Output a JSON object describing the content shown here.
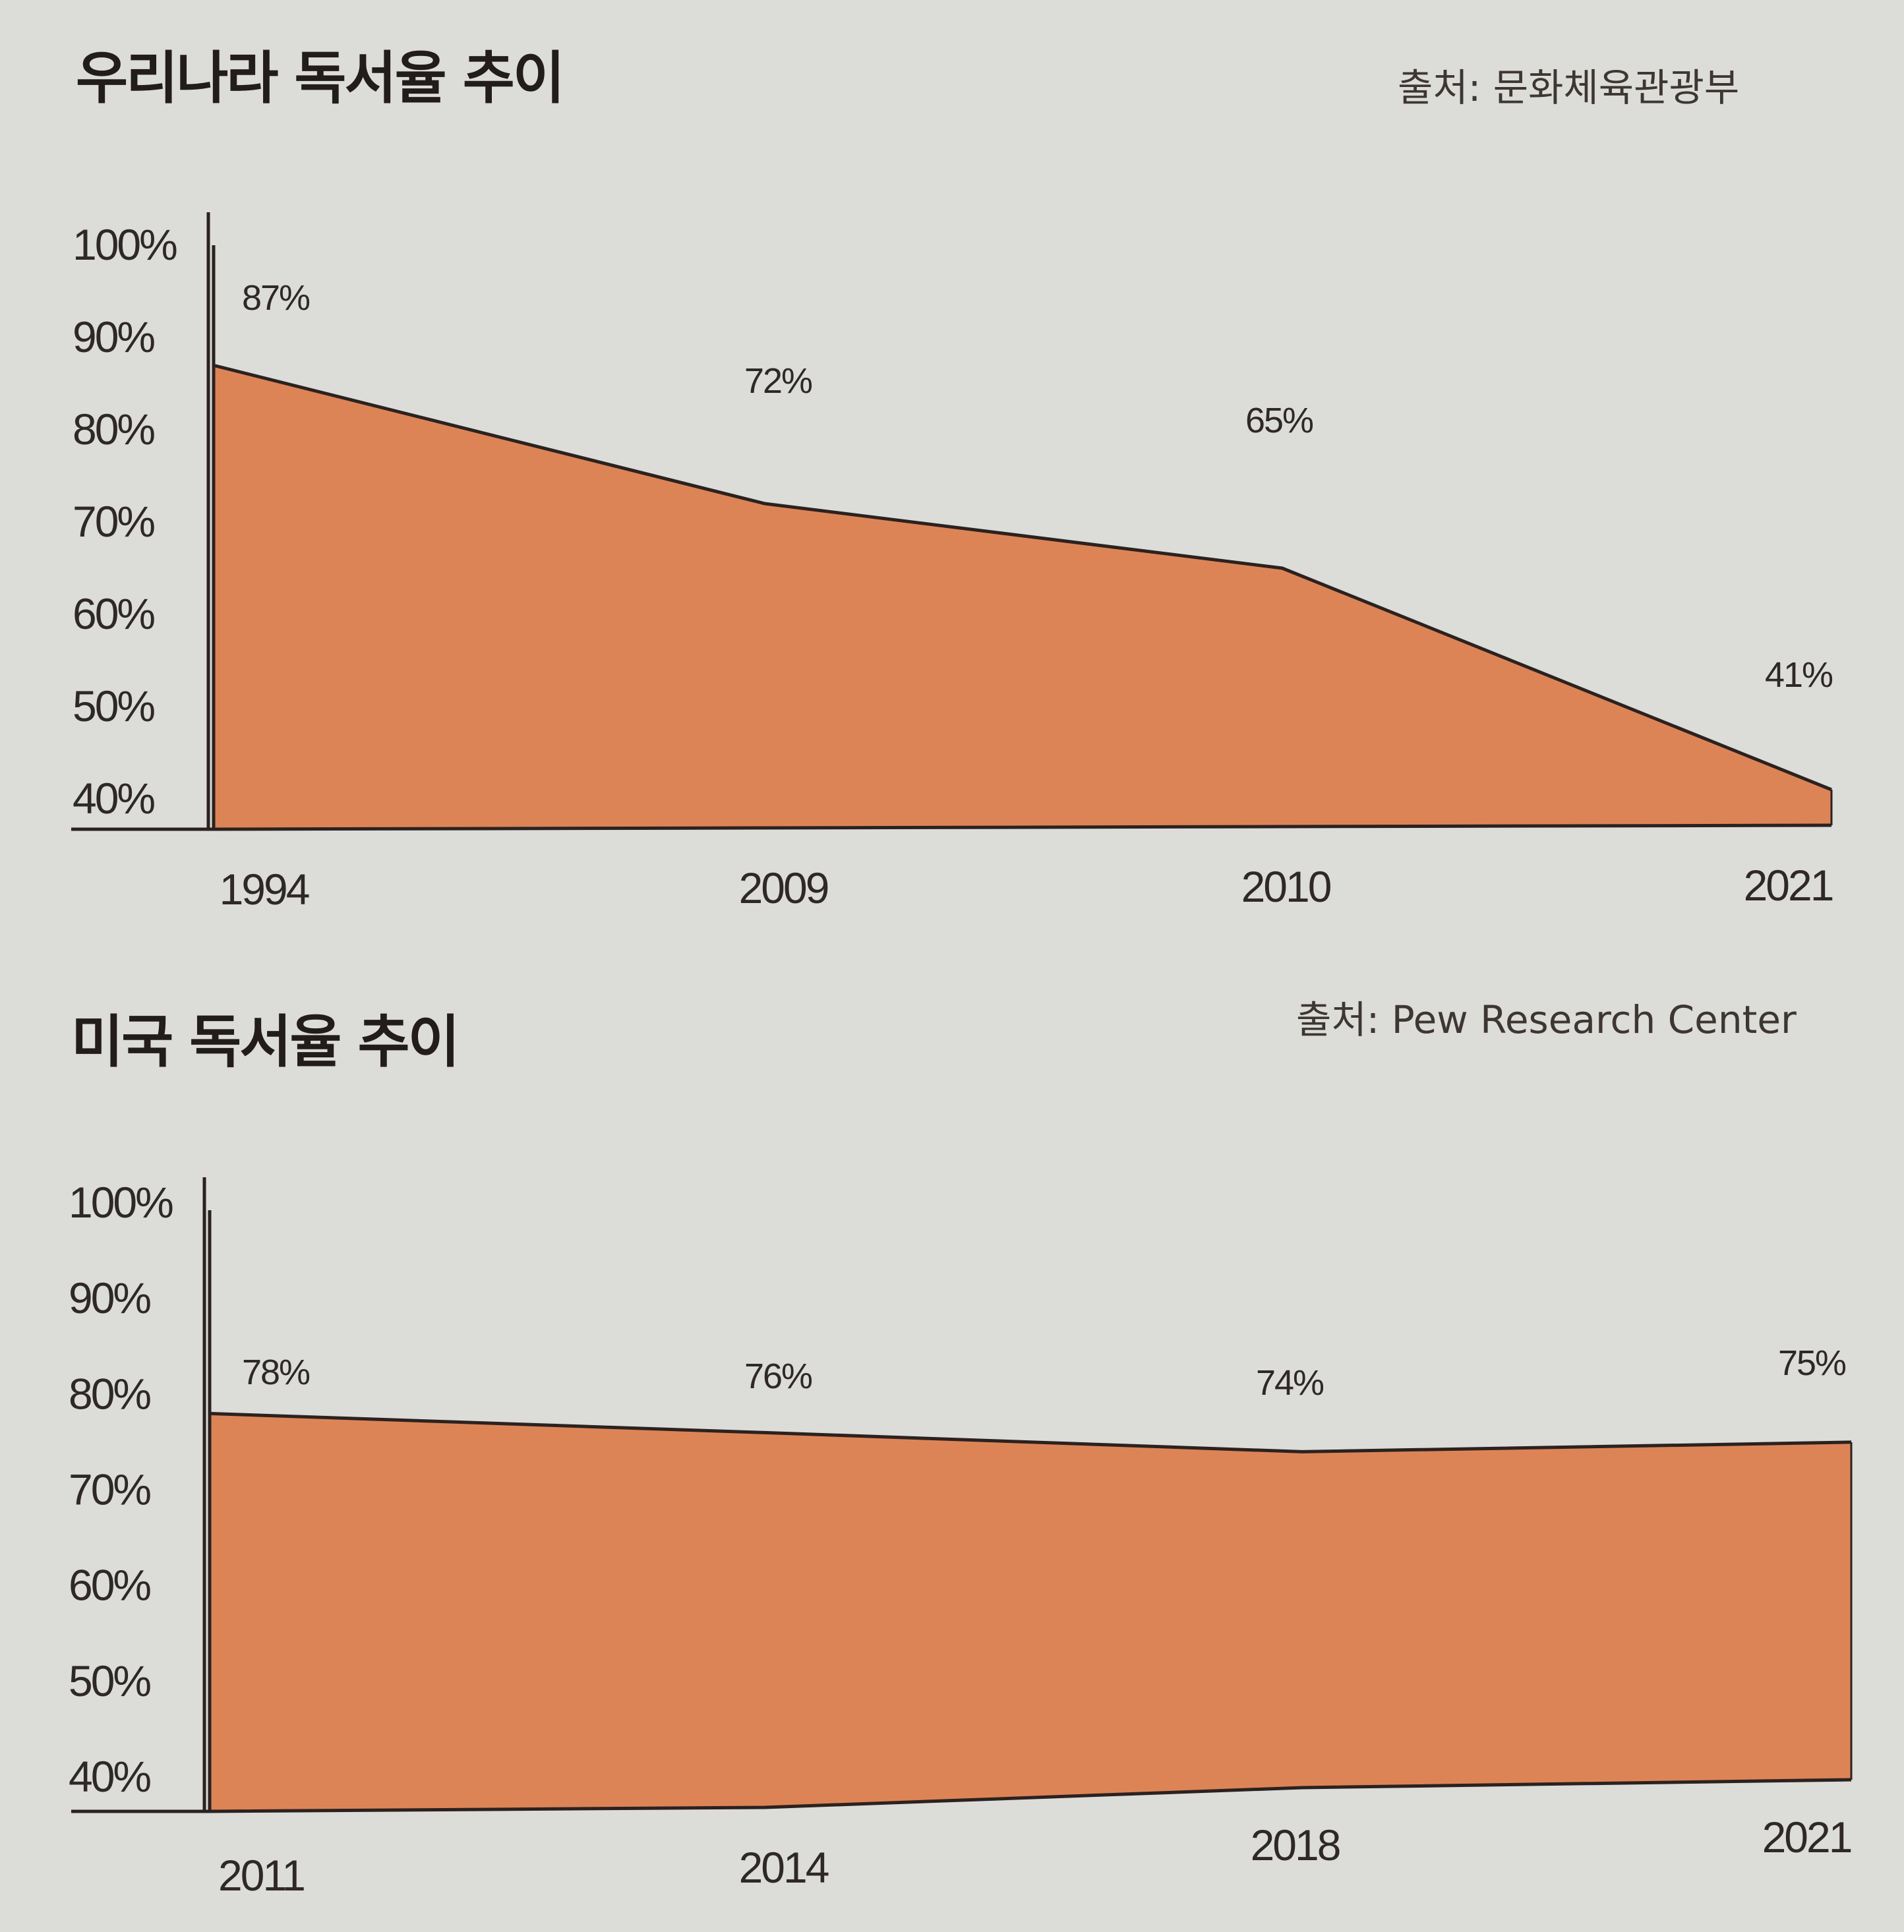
{
  "colors": {
    "area_fill": "#dd8457",
    "line": "#2b2220",
    "background": "#dcdcd8"
  },
  "chart_data": [
    {
      "type": "area",
      "title": "우리나라 독서율 추이",
      "source": "출처: 문화체육관광부",
      "y_ticks": [
        "100%",
        "90%",
        "80%",
        "70%",
        "60%",
        "50%",
        "40%"
      ],
      "y_tick_values": [
        100,
        90,
        80,
        70,
        60,
        50,
        40
      ],
      "ylim": [
        40,
        100
      ],
      "x": [
        "1994",
        "2009",
        "2010",
        "2021"
      ],
      "values": [
        87,
        72,
        65,
        41
      ],
      "data_labels": [
        "87%",
        "72%",
        "65%",
        "41%"
      ],
      "grid": false,
      "legend": "none"
    },
    {
      "type": "area",
      "title": "미국 독서율 추이",
      "source": "출처: Pew Research Center",
      "y_ticks": [
        "100%",
        "90%",
        "80%",
        "70%",
        "60%",
        "50%",
        "40%"
      ],
      "y_tick_values": [
        100,
        90,
        80,
        70,
        60,
        50,
        40
      ],
      "ylim": [
        40,
        100
      ],
      "x": [
        "2011",
        "2014",
        "2018",
        "2021"
      ],
      "values": [
        78,
        76,
        74,
        75
      ],
      "data_labels": [
        "78%",
        "76%",
        "74%",
        "75%"
      ],
      "grid": false,
      "legend": "none"
    }
  ]
}
